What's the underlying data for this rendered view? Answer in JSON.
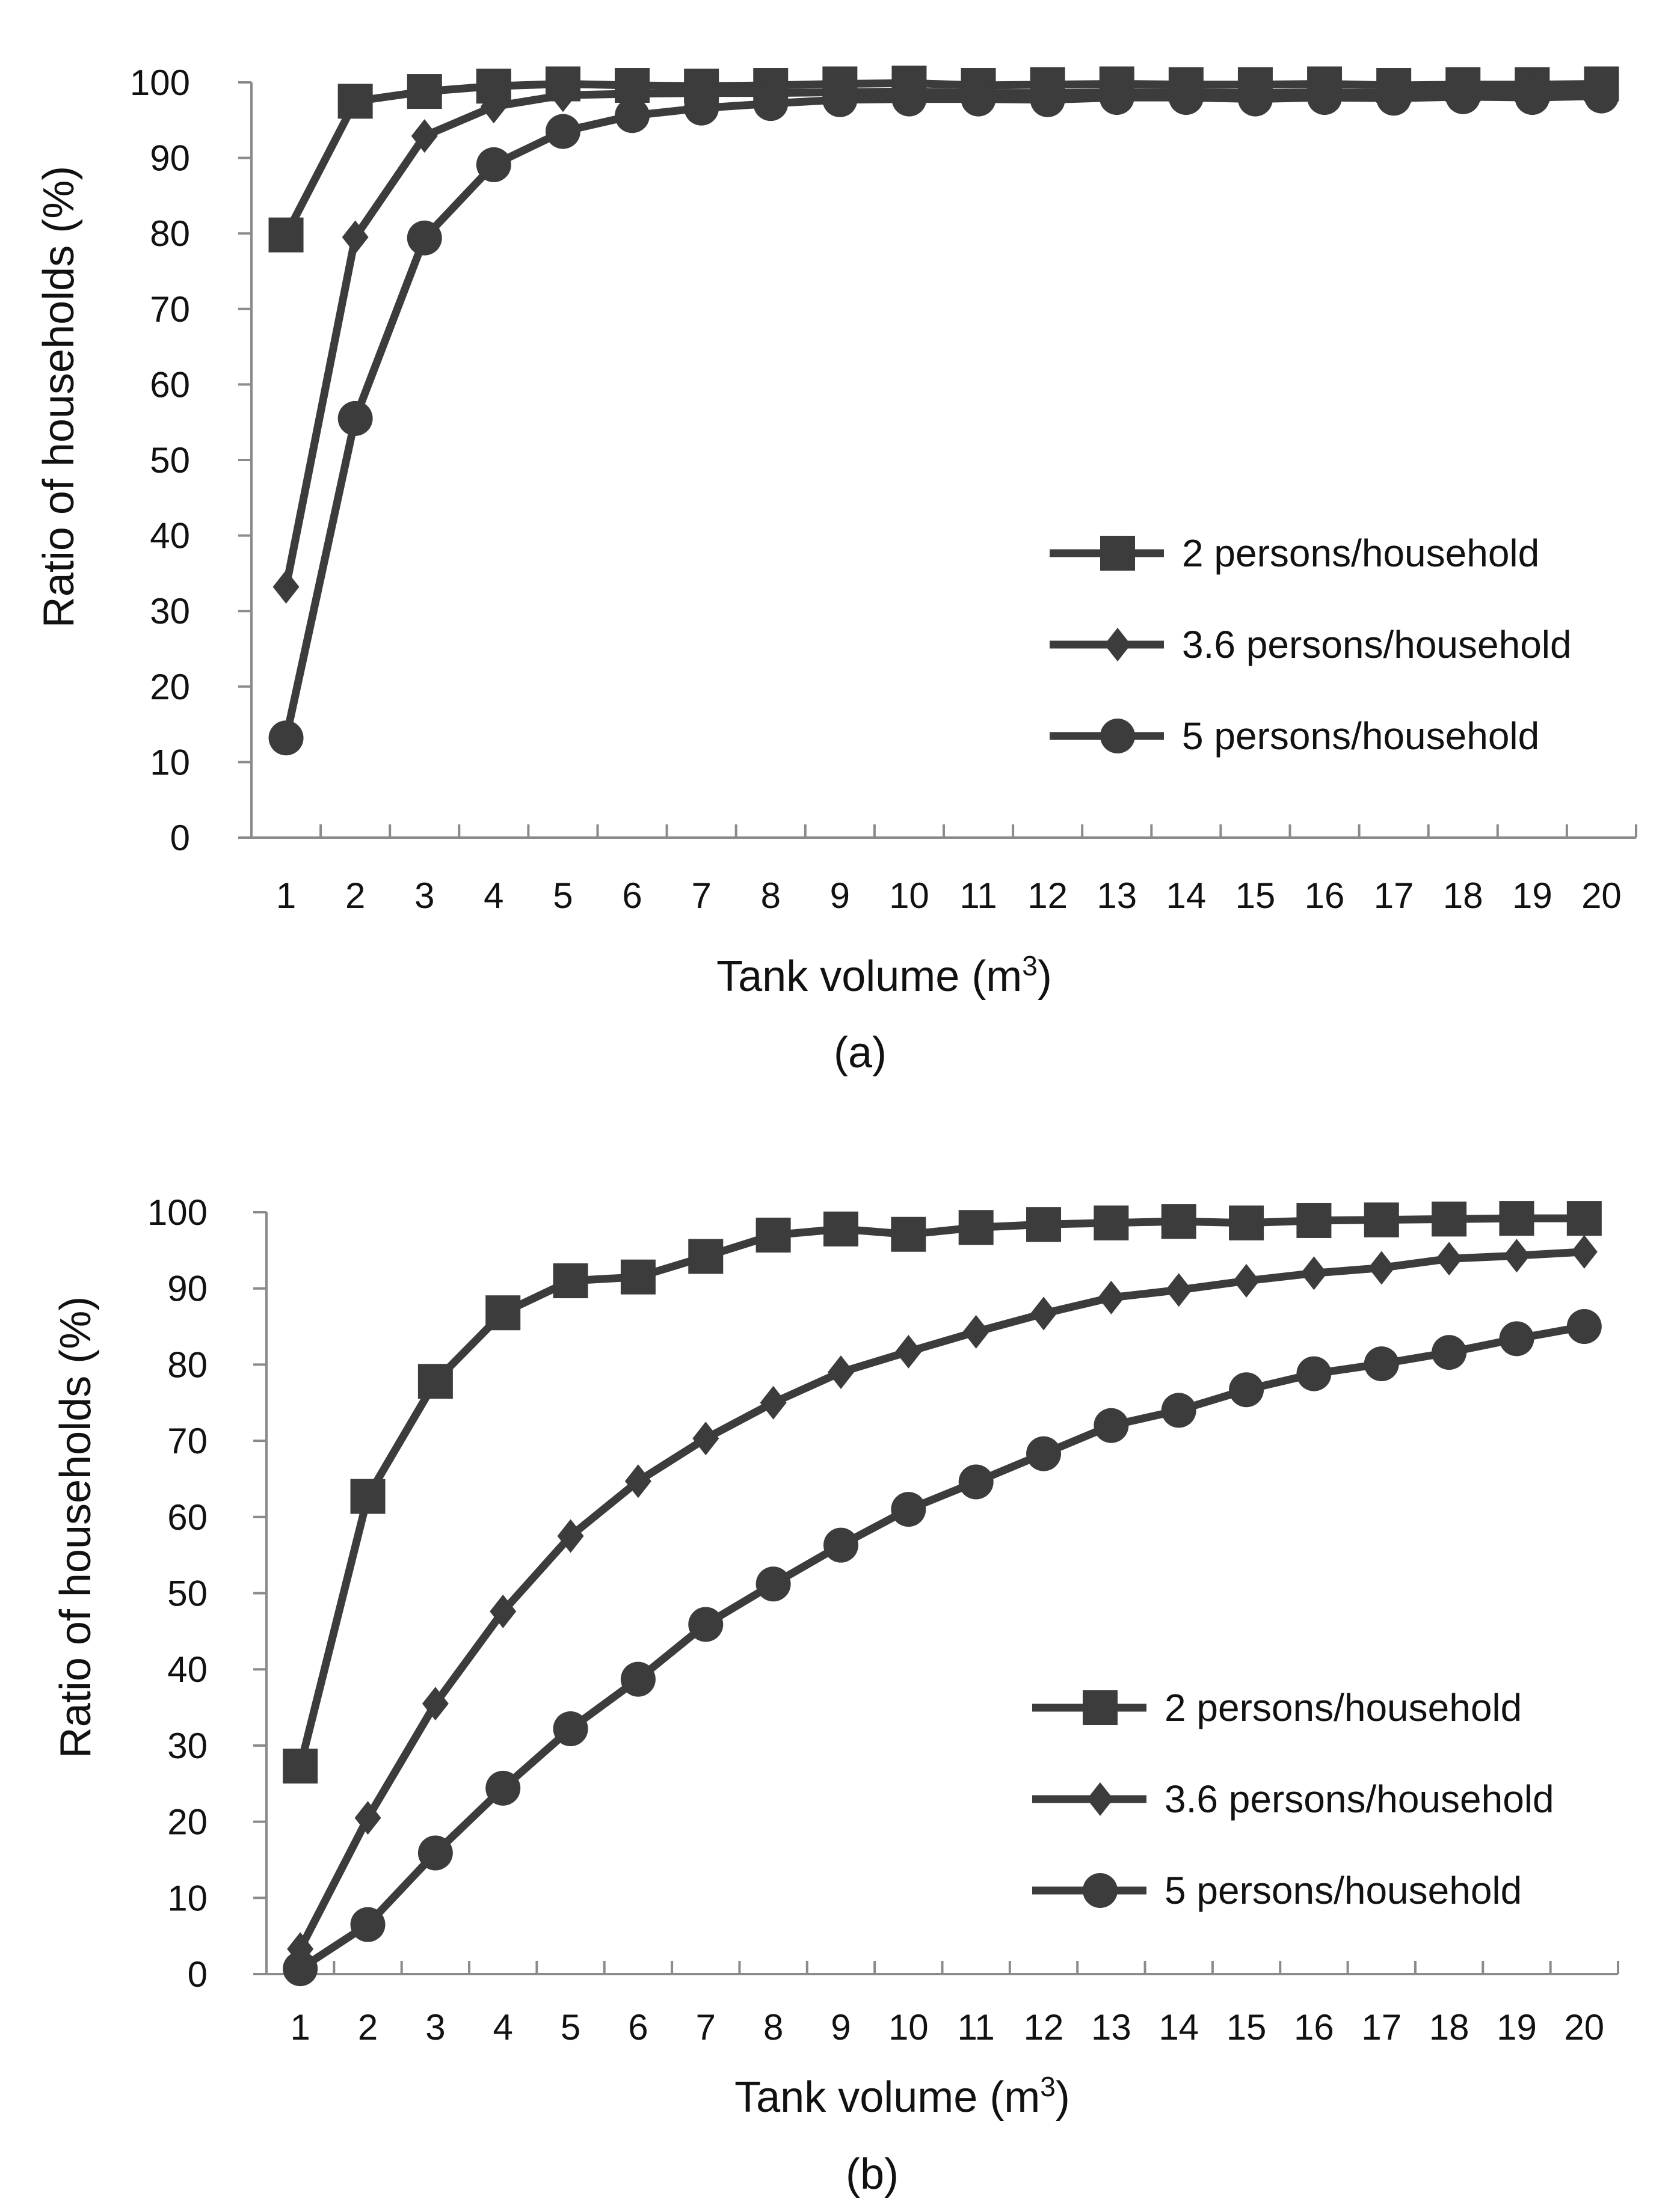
{
  "chart_data": [
    {
      "type": "line",
      "panel_label": "(a)",
      "xlabel": "Tank volume (m",
      "xlabel_sup": "3",
      "xlabel_end": ")",
      "ylabel": "Ratio of households (%)",
      "ylim": [
        0,
        100
      ],
      "yticks": [
        "0",
        "10",
        "20",
        "30",
        "40",
        "50",
        "60",
        "70",
        "80",
        "90",
        "100"
      ],
      "categories": [
        "1",
        "2",
        "3",
        "4",
        "5",
        "6",
        "7",
        "8",
        "9",
        "10",
        "11",
        "12",
        "13",
        "14",
        "15",
        "16",
        "17",
        "18",
        "19",
        "20"
      ],
      "legend_position": "right-middle",
      "series": [
        {
          "name": "2 persons/household",
          "marker": "square",
          "values": [
            79.8,
            97.5,
            98.8,
            99.5,
            99.8,
            99.6,
            99.5,
            99.6,
            99.8,
            99.9,
            99.6,
            99.7,
            99.8,
            99.7,
            99.7,
            99.8,
            99.6,
            99.7,
            99.7,
            99.8
          ]
        },
        {
          "name": "3.6 persons/household",
          "marker": "diamond",
          "values": [
            33.2,
            79.5,
            92.9,
            96.8,
            98.3,
            98.5,
            98.6,
            98.6,
            98.7,
            98.8,
            98.6,
            98.6,
            98.7,
            98.7,
            98.6,
            98.7,
            98.6,
            98.7,
            98.7,
            98.8
          ]
        },
        {
          "name": "5 persons/household",
          "marker": "circle",
          "values": [
            13.2,
            55.5,
            79.4,
            89.1,
            93.5,
            95.6,
            96.6,
            97.2,
            97.7,
            97.8,
            97.8,
            97.7,
            98.0,
            98.0,
            97.8,
            98.0,
            97.9,
            98.1,
            98.0,
            98.2
          ]
        }
      ]
    },
    {
      "type": "line",
      "panel_label": "(b)",
      "xlabel": "Tank volume (m",
      "xlabel_sup": "3",
      "xlabel_end": ")",
      "ylabel": "Ratio of households (%)",
      "ylim": [
        0,
        100
      ],
      "yticks": [
        "0",
        "10",
        "20",
        "30",
        "40",
        "50",
        "60",
        "70",
        "80",
        "90",
        "100"
      ],
      "categories": [
        "1",
        "2",
        "3",
        "4",
        "5",
        "6",
        "7",
        "8",
        "9",
        "10",
        "11",
        "12",
        "13",
        "14",
        "15",
        "16",
        "17",
        "18",
        "19",
        "20"
      ],
      "legend_position": "right-lower",
      "series": [
        {
          "name": "2 persons/household",
          "marker": "square",
          "values": [
            27.3,
            62.7,
            77.8,
            86.8,
            91.0,
            91.5,
            94.2,
            97.0,
            97.8,
            97.1,
            98.0,
            98.4,
            98.6,
            98.8,
            98.6,
            98.9,
            99.0,
            99.1,
            99.2,
            99.2
          ]
        },
        {
          "name": "3.6 persons/household",
          "marker": "diamond",
          "values": [
            3.3,
            20.5,
            35.5,
            47.6,
            57.5,
            64.7,
            70.3,
            75.0,
            79.0,
            81.7,
            84.3,
            86.7,
            88.8,
            89.8,
            91.0,
            92.0,
            92.7,
            93.9,
            94.3,
            94.8
          ]
        },
        {
          "name": "5 persons/household",
          "marker": "circle",
          "values": [
            0.7,
            6.5,
            15.9,
            24.4,
            32.2,
            38.7,
            45.9,
            51.2,
            56.3,
            61.0,
            64.6,
            68.3,
            72.0,
            74.0,
            76.7,
            78.8,
            80.1,
            81.6,
            83.4,
            85.0
          ]
        }
      ]
    }
  ],
  "colors": {
    "series": "#3c3c3c",
    "axis": "#8a8a8a",
    "text": "#111111"
  }
}
